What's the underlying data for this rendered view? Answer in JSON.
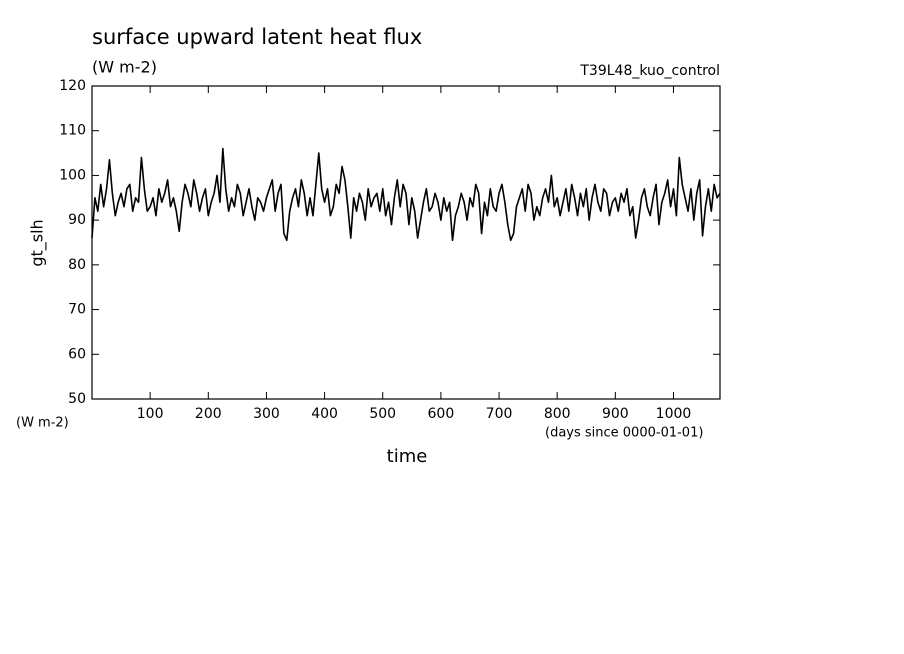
{
  "chart_data": {
    "type": "line",
    "title": "surface upward latent heat flux",
    "subtitle": "(W m-2)",
    "experiment": "T39L48_kuo_control",
    "y_label": "gt_slh",
    "y_unit": "(W m-2)",
    "x_unit": "(days since 0000-01-01)",
    "x_label": "time",
    "xlim": [
      0,
      1080
    ],
    "ylim": [
      50,
      120
    ],
    "xticks": [
      100,
      200,
      300,
      400,
      500,
      600,
      700,
      800,
      900,
      1000
    ],
    "yticks": [
      50,
      60,
      70,
      80,
      90,
      100,
      110,
      120
    ],
    "color": "#000000",
    "x": [
      0,
      5,
      10,
      15,
      20,
      25,
      30,
      35,
      40,
      45,
      50,
      55,
      60,
      65,
      70,
      75,
      80,
      85,
      90,
      95,
      100,
      105,
      110,
      115,
      120,
      125,
      130,
      135,
      140,
      145,
      150,
      155,
      160,
      165,
      170,
      175,
      180,
      185,
      190,
      195,
      200,
      205,
      210,
      215,
      220,
      225,
      230,
      235,
      240,
      245,
      250,
      255,
      260,
      265,
      270,
      275,
      280,
      285,
      290,
      295,
      300,
      305,
      310,
      315,
      320,
      325,
      330,
      335,
      340,
      345,
      350,
      355,
      360,
      365,
      370,
      375,
      380,
      385,
      390,
      395,
      400,
      405,
      410,
      415,
      420,
      425,
      430,
      435,
      440,
      445,
      450,
      455,
      460,
      465,
      470,
      475,
      480,
      485,
      490,
      495,
      500,
      505,
      510,
      515,
      520,
      525,
      530,
      535,
      540,
      545,
      550,
      555,
      560,
      565,
      570,
      575,
      580,
      585,
      590,
      595,
      600,
      605,
      610,
      615,
      620,
      625,
      630,
      635,
      640,
      645,
      650,
      655,
      660,
      665,
      670,
      675,
      680,
      685,
      690,
      695,
      700,
      705,
      710,
      715,
      720,
      725,
      730,
      735,
      740,
      745,
      750,
      755,
      760,
      765,
      770,
      775,
      780,
      785,
      790,
      795,
      800,
      805,
      810,
      815,
      820,
      825,
      830,
      835,
      840,
      845,
      850,
      855,
      860,
      865,
      870,
      875,
      880,
      885,
      890,
      895,
      900,
      905,
      910,
      915,
      920,
      925,
      930,
      935,
      940,
      945,
      950,
      955,
      960,
      965,
      970,
      975,
      980,
      985,
      990,
      995,
      1000,
      1005,
      1010,
      1015,
      1020,
      1025,
      1030,
      1035,
      1040,
      1045,
      1050,
      1055,
      1060,
      1065,
      1070,
      1075,
      1080
    ],
    "values": [
      86,
      95,
      92,
      98,
      93,
      97,
      103.5,
      96,
      91,
      94,
      96,
      93,
      97,
      98,
      92,
      95,
      94,
      104,
      97,
      92,
      93,
      95,
      91,
      97,
      94,
      96,
      99,
      93,
      95,
      92,
      87.5,
      94,
      98,
      96,
      93,
      99,
      96,
      92,
      95,
      97,
      91,
      94,
      96,
      100,
      94,
      106,
      97,
      92,
      95,
      93,
      98,
      96,
      91,
      94,
      97,
      93,
      90,
      95,
      94,
      92,
      95,
      97,
      99,
      92,
      96,
      98,
      87,
      85.5,
      92,
      95,
      97,
      93,
      99,
      96,
      91,
      95,
      91,
      98,
      105,
      97,
      94,
      97,
      91,
      93,
      98,
      96,
      102,
      99,
      93,
      86,
      95,
      92,
      96,
      94,
      90,
      97,
      93,
      95,
      96,
      92,
      97,
      91,
      94,
      89,
      95,
      99,
      93,
      98,
      96,
      89,
      95,
      92,
      86,
      90,
      94,
      97,
      92,
      93,
      96,
      94,
      90,
      95,
      92,
      94,
      85.5,
      91,
      93,
      96,
      94,
      90,
      95,
      93,
      98,
      96,
      87,
      94,
      91,
      97,
      93,
      92,
      96,
      98,
      94,
      89,
      85.5,
      87,
      93,
      95,
      97,
      92,
      98,
      96,
      90,
      93,
      91,
      95,
      97,
      94,
      100,
      93,
      95,
      91,
      94,
      97,
      92,
      98,
      95,
      91,
      96,
      93,
      97,
      90,
      95,
      98,
      94,
      92,
      97,
      96,
      91,
      94,
      95,
      92,
      96,
      94,
      97,
      91,
      93,
      86,
      90,
      95,
      97,
      93,
      91,
      95,
      98,
      89,
      94,
      96,
      99,
      93,
      97,
      91,
      104,
      98,
      95,
      92,
      97,
      90,
      96,
      99,
      86.5,
      93,
      97,
      92,
      98,
      95,
      96
    ]
  }
}
